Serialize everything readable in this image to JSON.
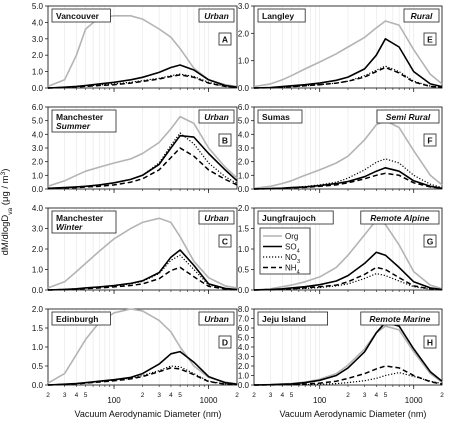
{
  "figure": {
    "ylabel": "dM/dlogD",
    "ylabel_sub": "va",
    "ylabel_unit_pre": " (μg / m",
    "ylabel_unit_sup": "3",
    "ylabel_unit_post": ")",
    "xlabel_left": "Vacuum Aerodynamic Diameter (nm)",
    "xlabel_right": "Vacuum Aerodynamic Diameter (nm)",
    "x_major_labels": [
      "100",
      "1000"
    ],
    "x_minor_labels": [
      "2",
      "3",
      "4",
      "5",
      "2",
      "3",
      "4",
      "5",
      "2"
    ],
    "legend": {
      "org": "Org",
      "so4": "SO",
      "so4_sub": "4",
      "no3": "NO",
      "no3_sub": "3",
      "nh4": "NH",
      "nh4_sub": "4"
    },
    "colors": {
      "Org": "#b4b4b4",
      "SO4": "#000000",
      "NO3": "#000000",
      "NH4": "#000000"
    }
  },
  "chart_data": [
    {
      "type": "line",
      "x_scale": "log",
      "xlim": [
        20,
        2000
      ],
      "ylim": [
        0,
        5.0
      ],
      "yticks": [
        "0.0",
        "1.0",
        "2.0",
        "3.0",
        "4.0",
        "5.0"
      ],
      "site": "Vancouver",
      "site2": "",
      "category": "Urban",
      "panel": "A",
      "x": [
        20,
        30,
        40,
        50,
        70,
        100,
        150,
        200,
        300,
        400,
        500,
        700,
        1000,
        1500,
        2000
      ],
      "series": [
        {
          "name": "Org",
          "values": [
            0.1,
            0.5,
            2.0,
            3.6,
            4.3,
            4.4,
            4.4,
            4.2,
            3.6,
            3.1,
            2.4,
            1.2,
            0.5,
            0.2,
            0.1
          ]
        },
        {
          "name": "SO4",
          "values": [
            0.0,
            0.05,
            0.1,
            0.15,
            0.25,
            0.35,
            0.5,
            0.65,
            0.95,
            1.25,
            1.4,
            1.1,
            0.5,
            0.15,
            0.05
          ]
        },
        {
          "name": "NO3",
          "values": [
            0.0,
            0.03,
            0.08,
            0.12,
            0.18,
            0.25,
            0.35,
            0.45,
            0.6,
            0.75,
            0.85,
            0.7,
            0.35,
            0.1,
            0.03
          ]
        },
        {
          "name": "NH4",
          "values": [
            0.0,
            0.03,
            0.07,
            0.1,
            0.15,
            0.2,
            0.3,
            0.4,
            0.55,
            0.7,
            0.8,
            0.65,
            0.3,
            0.1,
            0.03
          ]
        }
      ]
    },
    {
      "type": "line",
      "x_scale": "log",
      "xlim": [
        20,
        2000
      ],
      "ylim": [
        0,
        3.0
      ],
      "yticks": [
        "0.0",
        "1.0",
        "2.0",
        "3.0"
      ],
      "site": "Langley",
      "site2": "",
      "category": "Rural",
      "panel": "E",
      "x": [
        20,
        30,
        40,
        50,
        70,
        100,
        150,
        200,
        300,
        400,
        500,
        700,
        1000,
        1500,
        2000
      ],
      "series": [
        {
          "name": "Org",
          "values": [
            0.05,
            0.15,
            0.3,
            0.45,
            0.7,
            0.95,
            1.25,
            1.5,
            1.85,
            2.2,
            2.45,
            2.3,
            1.4,
            0.5,
            0.15
          ]
        },
        {
          "name": "SO4",
          "values": [
            0.0,
            0.02,
            0.05,
            0.08,
            0.12,
            0.18,
            0.28,
            0.4,
            0.7,
            1.2,
            1.8,
            1.5,
            0.6,
            0.15,
            0.05
          ]
        },
        {
          "name": "NO3",
          "values": [
            0.0,
            0.01,
            0.03,
            0.05,
            0.08,
            0.12,
            0.18,
            0.25,
            0.45,
            0.65,
            0.8,
            0.6,
            0.25,
            0.07,
            0.02
          ]
        },
        {
          "name": "NH4",
          "values": [
            0.0,
            0.01,
            0.03,
            0.05,
            0.08,
            0.12,
            0.18,
            0.25,
            0.4,
            0.6,
            0.75,
            0.55,
            0.22,
            0.06,
            0.02
          ]
        }
      ]
    },
    {
      "type": "line",
      "x_scale": "log",
      "xlim": [
        20,
        2000
      ],
      "ylim": [
        0,
        6.0
      ],
      "yticks": [
        "0.0",
        "1.0",
        "2.0",
        "3.0",
        "4.0",
        "5.0",
        "6.0"
      ],
      "site": "Manchester",
      "site2": "Summer",
      "category": "Urban",
      "panel": "B",
      "x": [
        20,
        30,
        40,
        50,
        70,
        100,
        150,
        200,
        300,
        400,
        500,
        700,
        1000,
        1500,
        2000
      ],
      "series": [
        {
          "name": "Org",
          "values": [
            0.2,
            0.6,
            1.0,
            1.3,
            1.6,
            1.9,
            2.2,
            2.6,
            3.4,
            4.4,
            5.3,
            4.8,
            3.0,
            1.6,
            0.8
          ]
        },
        {
          "name": "SO4",
          "values": [
            0.05,
            0.1,
            0.15,
            0.2,
            0.3,
            0.45,
            0.7,
            1.0,
            1.8,
            3.0,
            3.9,
            3.8,
            2.6,
            1.4,
            0.6
          ]
        },
        {
          "name": "NO3",
          "values": [
            0.05,
            0.1,
            0.15,
            0.2,
            0.3,
            0.45,
            0.7,
            1.0,
            1.9,
            3.2,
            4.1,
            3.3,
            1.9,
            0.9,
            0.4
          ]
        },
        {
          "name": "NH4",
          "values": [
            0.03,
            0.07,
            0.1,
            0.15,
            0.2,
            0.3,
            0.5,
            0.75,
            1.4,
            2.3,
            3.0,
            2.4,
            1.4,
            0.7,
            0.3
          ]
        }
      ]
    },
    {
      "type": "line",
      "x_scale": "log",
      "xlim": [
        20,
        2000
      ],
      "ylim": [
        0,
        6.0
      ],
      "yticks": [
        "0.0",
        "1.0",
        "2.0",
        "3.0",
        "4.0",
        "5.0",
        "6.0"
      ],
      "site": "Sumas",
      "site2": "",
      "category": "Semi Rural",
      "panel": "F",
      "x": [
        20,
        30,
        40,
        50,
        70,
        100,
        150,
        200,
        300,
        400,
        500,
        700,
        1000,
        1500,
        2000
      ],
      "series": [
        {
          "name": "Org",
          "values": [
            0.05,
            0.2,
            0.4,
            0.6,
            1.0,
            1.4,
            1.9,
            2.4,
            3.6,
            4.7,
            5.0,
            4.5,
            2.8,
            1.0,
            0.3
          ]
        },
        {
          "name": "SO4",
          "values": [
            0.0,
            0.03,
            0.06,
            0.1,
            0.15,
            0.25,
            0.4,
            0.55,
            0.9,
            1.3,
            1.55,
            1.3,
            0.6,
            0.2,
            0.05
          ]
        },
        {
          "name": "NO3",
          "values": [
            0.0,
            0.03,
            0.06,
            0.1,
            0.18,
            0.3,
            0.5,
            0.8,
            1.4,
            1.95,
            2.2,
            1.9,
            1.0,
            0.35,
            0.1
          ]
        },
        {
          "name": "NH4",
          "values": [
            0.0,
            0.02,
            0.05,
            0.08,
            0.12,
            0.2,
            0.3,
            0.45,
            0.75,
            1.0,
            1.15,
            1.0,
            0.45,
            0.15,
            0.05
          ]
        }
      ]
    },
    {
      "type": "line",
      "x_scale": "log",
      "xlim": [
        20,
        2000
      ],
      "ylim": [
        0,
        4.0
      ],
      "yticks": [
        "0.0",
        "1.0",
        "2.0",
        "3.0",
        "4.0"
      ],
      "site": "Manchester",
      "site2": "Winter",
      "category": "Urban",
      "panel": "C",
      "x": [
        20,
        30,
        40,
        50,
        70,
        100,
        150,
        200,
        300,
        400,
        500,
        700,
        1000,
        1500,
        2000
      ],
      "series": [
        {
          "name": "Org",
          "values": [
            0.1,
            0.4,
            0.9,
            1.3,
            1.9,
            2.5,
            3.0,
            3.3,
            3.5,
            3.3,
            2.6,
            1.4,
            0.6,
            0.2,
            0.1
          ]
        },
        {
          "name": "SO4",
          "values": [
            0.0,
            0.03,
            0.06,
            0.1,
            0.15,
            0.22,
            0.32,
            0.45,
            0.85,
            1.6,
            1.95,
            1.2,
            0.3,
            0.08,
            0.02
          ]
        },
        {
          "name": "NO3",
          "values": [
            0.0,
            0.03,
            0.06,
            0.1,
            0.15,
            0.2,
            0.3,
            0.42,
            0.8,
            1.45,
            1.7,
            1.0,
            0.25,
            0.07,
            0.02
          ]
        },
        {
          "name": "NH4",
          "values": [
            0.0,
            0.02,
            0.04,
            0.07,
            0.1,
            0.15,
            0.22,
            0.3,
            0.55,
            0.95,
            1.1,
            0.65,
            0.18,
            0.05,
            0.01
          ]
        }
      ]
    },
    {
      "type": "line",
      "x_scale": "log",
      "xlim": [
        20,
        2000
      ],
      "ylim": [
        0,
        2.0
      ],
      "yticks": [
        "0.0",
        "0.5",
        "1.0",
        "1.5",
        "2.0"
      ],
      "site": "Jungfraujoch",
      "site2": "",
      "category": "Remote Alpine",
      "panel": "G",
      "x": [
        20,
        30,
        40,
        50,
        70,
        100,
        150,
        200,
        300,
        400,
        500,
        700,
        1000,
        1500,
        2000
      ],
      "series": [
        {
          "name": "Org",
          "values": [
            0.0,
            0.03,
            0.08,
            0.12,
            0.2,
            0.32,
            0.55,
            0.85,
            1.35,
            1.7,
            1.6,
            1.1,
            0.45,
            0.12,
            0.03
          ]
        },
        {
          "name": "SO4",
          "values": [
            0.0,
            0.01,
            0.03,
            0.05,
            0.08,
            0.13,
            0.22,
            0.35,
            0.65,
            0.92,
            0.85,
            0.55,
            0.2,
            0.05,
            0.01
          ]
        },
        {
          "name": "NO3",
          "values": [
            0.0,
            0.01,
            0.02,
            0.03,
            0.04,
            0.06,
            0.1,
            0.15,
            0.28,
            0.4,
            0.35,
            0.22,
            0.08,
            0.02,
            0.01
          ]
        },
        {
          "name": "NH4",
          "values": [
            0.0,
            0.01,
            0.02,
            0.03,
            0.05,
            0.08,
            0.12,
            0.2,
            0.38,
            0.55,
            0.5,
            0.3,
            0.1,
            0.03,
            0.01
          ]
        }
      ]
    },
    {
      "type": "line",
      "x_scale": "log",
      "xlim": [
        20,
        2000
      ],
      "ylim": [
        0,
        2.0
      ],
      "yticks": [
        "0.0",
        "0.5",
        "1.0",
        "1.5",
        "2.0"
      ],
      "site": "Edinburgh",
      "site2": "",
      "category": "Urban",
      "panel": "D",
      "x": [
        20,
        30,
        40,
        50,
        70,
        100,
        150,
        200,
        300,
        400,
        500,
        700,
        1000,
        1500,
        2000
      ],
      "series": [
        {
          "name": "Org",
          "values": [
            0.05,
            0.3,
            0.8,
            1.2,
            1.65,
            1.9,
            2.0,
            1.95,
            1.7,
            1.4,
            1.0,
            0.5,
            0.2,
            0.08,
            0.03
          ]
        },
        {
          "name": "SO4",
          "values": [
            0.0,
            0.02,
            0.04,
            0.06,
            0.1,
            0.14,
            0.2,
            0.3,
            0.55,
            0.82,
            0.88,
            0.6,
            0.22,
            0.06,
            0.02
          ]
        },
        {
          "name": "NO3",
          "values": [
            0.0,
            0.02,
            0.04,
            0.06,
            0.09,
            0.13,
            0.18,
            0.25,
            0.38,
            0.5,
            0.48,
            0.3,
            0.1,
            0.03,
            0.01
          ]
        },
        {
          "name": "NH4",
          "values": [
            0.0,
            0.01,
            0.03,
            0.05,
            0.08,
            0.11,
            0.16,
            0.22,
            0.35,
            0.45,
            0.42,
            0.27,
            0.09,
            0.02,
            0.01
          ]
        }
      ]
    },
    {
      "type": "line",
      "x_scale": "log",
      "xlim": [
        20,
        2000
      ],
      "ylim": [
        0,
        8.0
      ],
      "yticks": [
        "0.0",
        "1.0",
        "2.0",
        "3.0",
        "4.0",
        "5.0",
        "6.0",
        "7.0",
        "8.0"
      ],
      "site": "Jeju Island",
      "site2": "",
      "category": "Remote Marine",
      "panel": "H",
      "x": [
        20,
        30,
        40,
        50,
        70,
        100,
        150,
        200,
        300,
        400,
        500,
        700,
        1000,
        1500,
        2000
      ],
      "series": [
        {
          "name": "Org",
          "values": [
            0.0,
            0.05,
            0.1,
            0.15,
            0.3,
            0.6,
            1.2,
            2.1,
            3.8,
            5.5,
            6.2,
            5.8,
            3.5,
            1.2,
            0.3
          ]
        },
        {
          "name": "SO4",
          "values": [
            0.0,
            0.03,
            0.08,
            0.12,
            0.25,
            0.5,
            1.0,
            1.8,
            3.5,
            5.5,
            6.6,
            6.2,
            3.8,
            1.4,
            0.4
          ]
        },
        {
          "name": "NO3",
          "values": [
            0.0,
            0.01,
            0.02,
            0.03,
            0.05,
            0.08,
            0.15,
            0.25,
            0.45,
            0.7,
            1.0,
            1.3,
            0.9,
            0.4,
            0.15
          ]
        },
        {
          "name": "NH4",
          "values": [
            0.0,
            0.01,
            0.03,
            0.05,
            0.1,
            0.2,
            0.4,
            0.7,
            1.2,
            1.7,
            2.0,
            1.8,
            1.0,
            0.35,
            0.1
          ]
        }
      ]
    }
  ]
}
